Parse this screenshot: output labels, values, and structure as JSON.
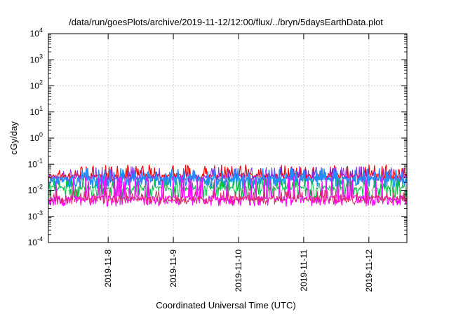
{
  "chart_data": {
    "type": "line",
    "title": "/data/run/goesPlots/archive/2019-11-12/12:00/flux/../bryn/5daysEarthData.plot",
    "xlabel": "Coordinated Universal Time (UTC)",
    "ylabel": "cGy/day",
    "yscale": "log",
    "ylim": [
      0.0001,
      10000
    ],
    "yticks": [
      {
        "value": 0.0001,
        "base": "10",
        "exp": "-4"
      },
      {
        "value": 0.001,
        "base": "10",
        "exp": "-3"
      },
      {
        "value": 0.01,
        "base": "10",
        "exp": "-2"
      },
      {
        "value": 0.1,
        "base": "10",
        "exp": "-1"
      },
      {
        "value": 1,
        "base": "10",
        "exp": "0"
      },
      {
        "value": 10,
        "base": "10",
        "exp": "1"
      },
      {
        "value": 100,
        "base": "10",
        "exp": "2"
      },
      {
        "value": 1000,
        "base": "10",
        "exp": "3"
      },
      {
        "value": 10000,
        "base": "10",
        "exp": "4"
      }
    ],
    "xlim": [
      "2019-11-07T02:00",
      "2019-11-12T14:00"
    ],
    "xticks": [
      "2019-11-8",
      "2019-11-9",
      "2019-11-10",
      "2019-11-11",
      "2019-11-12"
    ],
    "xtick_values": [
      "2019-11-08T00:00",
      "2019-11-09T00:00",
      "2019-11-10T00:00",
      "2019-11-11T00:00",
      "2019-11-12T00:00"
    ],
    "grid": true,
    "series": [
      {
        "color": "#ff0000",
        "base": 0.036,
        "spike": 0.075,
        "dip": 0.028,
        "seed": 11,
        "width": 1.2
      },
      {
        "color": "#8a2be2",
        "base": 0.032,
        "spike": 0.065,
        "dip": 0.024,
        "seed": 23,
        "width": 1.0
      },
      {
        "color": "#1e90ff",
        "base": 0.026,
        "spike": 0.055,
        "dip": 0.015,
        "seed": 37,
        "width": 1.6
      },
      {
        "color": "#00c040",
        "base": 0.012,
        "spike": 0.022,
        "dip": 0.006,
        "seed": 41,
        "width": 1.0
      },
      {
        "color": "#ff00ff",
        "base": 0.005,
        "spike": 0.028,
        "dip": 0.003,
        "seed": 53,
        "width": 1.2
      },
      {
        "color": "#d62a6a",
        "base": 0.0047,
        "spike": 0.008,
        "dip": 0.0036,
        "seed": 67,
        "width": 1.0
      }
    ]
  }
}
